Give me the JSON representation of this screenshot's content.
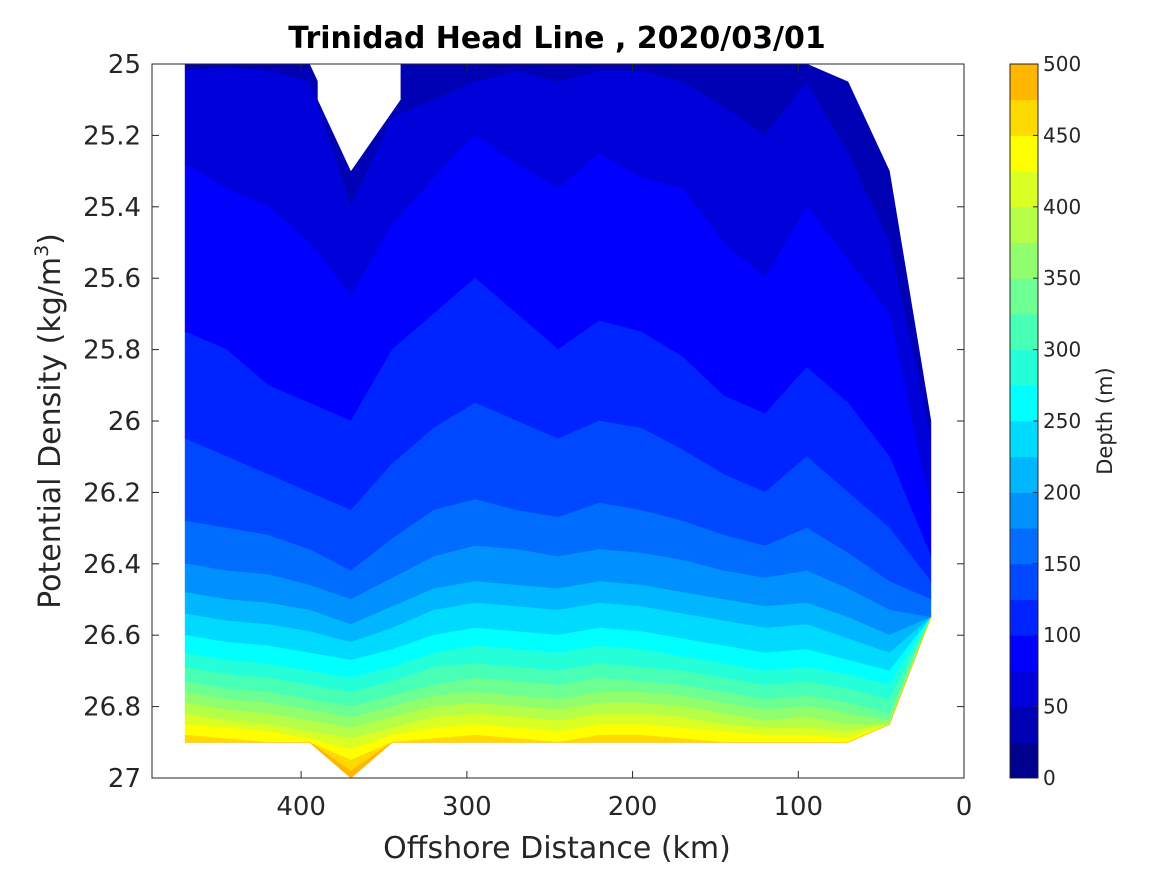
{
  "chart_data": {
    "type": "contourf",
    "title": "Trinidad Head Line , 2020/03/01",
    "xlabel": "Offshore Distance (km)",
    "ylabel": "Potential Density (kg/m",
    "ylabel_superscript": "3",
    "ylabel_suffix": ")",
    "x_reversed": true,
    "y_reversed": true,
    "xlim": [
      490,
      0
    ],
    "ylim": [
      25,
      27
    ],
    "x_ticks": [
      400,
      300,
      200,
      100,
      0
    ],
    "x_tick_labels": [
      "400",
      "300",
      "200",
      "100",
      "0"
    ],
    "y_ticks": [
      25,
      25.2,
      25.4,
      25.6,
      25.8,
      26,
      26.2,
      26.4,
      26.6,
      26.8,
      27
    ],
    "y_tick_labels": [
      "25",
      "25.2",
      "25.4",
      "25.6",
      "25.8",
      "26",
      "26.2",
      "26.4",
      "26.6",
      "26.8",
      "27"
    ],
    "colorbar": {
      "label": "Depth (m)",
      "range": [
        0,
        500
      ],
      "tick_values": [
        0,
        50,
        100,
        150,
        200,
        250,
        300,
        350,
        400,
        450,
        500
      ],
      "tick_labels": [
        "0",
        "50",
        "100",
        "150",
        "200",
        "250",
        "300",
        "350",
        "400",
        "450",
        "500"
      ],
      "colormap": "jet",
      "level_step": 25,
      "colors": [
        "#00008f",
        "#0000b4",
        "#0000da",
        "#0000ff",
        "#0024ff",
        "#0048ff",
        "#006dff",
        "#0091ff",
        "#00b6ff",
        "#00daff",
        "#00ffff",
        "#24ffda",
        "#48ffb6",
        "#6dff91",
        "#91ff6d",
        "#b6ff48",
        "#daff24",
        "#ffff00",
        "#ffda00",
        "#ffb600",
        "#ff9100",
        "#ff6d00",
        "#ff4800",
        "#ff2400",
        "#ff0000",
        "#da0000",
        "#b40000",
        "#8f0000"
      ]
    },
    "x_positions": [
      470,
      445,
      420,
      395,
      370,
      345,
      320,
      295,
      270,
      245,
      220,
      195,
      170,
      145,
      120,
      95,
      70,
      45,
      20
    ],
    "top_boundary": [
      25.0,
      25.0,
      25.0,
      25.0,
      25.25,
      25.0,
      25.0,
      25.0,
      25.0,
      25.0,
      25.0,
      25.0,
      25.0,
      25.0,
      25.0,
      25.0,
      25.05,
      25.3,
      26.0
    ],
    "bottom_boundary": [
      26.9,
      26.9,
      26.9,
      26.9,
      27.0,
      26.9,
      26.9,
      26.9,
      26.9,
      26.9,
      26.9,
      26.9,
      26.9,
      26.9,
      26.9,
      26.9,
      26.9,
      26.85,
      26.55
    ],
    "gaps": [
      {
        "x": [
          390,
          370,
          340
        ],
        "y_top": 25.0,
        "y_bottom": [
          25.1,
          25.3,
          25.1
        ]
      }
    ],
    "contours": [
      {
        "level": 50,
        "y": [
          25.02,
          25.01,
          25.02,
          25.05,
          25.4,
          25.15,
          25.1,
          25.05,
          25.02,
          25.05,
          25.02,
          25.02,
          25.05,
          25.12,
          25.2,
          25.05,
          25.25,
          25.5,
          26.05
        ]
      },
      {
        "level": 75,
        "y": [
          25.28,
          25.35,
          25.4,
          25.5,
          25.65,
          25.45,
          25.32,
          25.2,
          25.28,
          25.35,
          25.25,
          25.32,
          25.35,
          25.5,
          25.6,
          25.4,
          25.55,
          25.7,
          26.25
        ]
      },
      {
        "level": 100,
        "y": [
          25.75,
          25.8,
          25.9,
          25.95,
          26.0,
          25.8,
          25.7,
          25.6,
          25.7,
          25.8,
          25.72,
          25.75,
          25.82,
          25.93,
          25.98,
          25.85,
          25.95,
          26.1,
          26.38
        ]
      },
      {
        "level": 125,
        "y": [
          26.05,
          26.1,
          26.15,
          26.2,
          26.25,
          26.12,
          26.02,
          25.95,
          26.0,
          26.05,
          26.0,
          26.02,
          26.08,
          26.15,
          26.2,
          26.1,
          26.2,
          26.3,
          26.45
        ]
      },
      {
        "level": 150,
        "y": [
          26.28,
          26.3,
          26.32,
          26.36,
          26.42,
          26.33,
          26.25,
          26.22,
          26.25,
          26.27,
          26.23,
          26.25,
          26.28,
          26.32,
          26.35,
          26.3,
          26.37,
          26.45,
          26.5
        ]
      },
      {
        "level": 175,
        "y": [
          26.4,
          26.42,
          26.43,
          26.46,
          26.5,
          26.44,
          26.38,
          26.35,
          26.36,
          26.38,
          26.36,
          26.37,
          26.39,
          26.42,
          26.44,
          26.42,
          26.47,
          26.53,
          26.56
        ]
      },
      {
        "level": 200,
        "y": [
          26.48,
          26.5,
          26.51,
          26.53,
          26.57,
          26.52,
          26.47,
          26.45,
          26.46,
          26.47,
          26.45,
          26.46,
          26.48,
          26.5,
          26.52,
          26.51,
          26.55,
          26.6,
          26.62
        ]
      },
      {
        "level": 225,
        "y": [
          26.54,
          26.56,
          26.57,
          26.59,
          26.62,
          26.58,
          26.53,
          26.51,
          26.52,
          26.53,
          26.51,
          26.52,
          26.54,
          26.56,
          26.58,
          26.57,
          26.61,
          26.65,
          26.68
        ]
      },
      {
        "level": 250,
        "y": [
          26.6,
          26.62,
          26.63,
          26.65,
          26.67,
          26.64,
          26.6,
          26.58,
          26.59,
          26.6,
          26.58,
          26.59,
          26.61,
          26.63,
          26.65,
          26.64,
          26.67,
          26.7,
          26.72
        ]
      },
      {
        "level": 275,
        "y": [
          26.65,
          26.67,
          26.68,
          26.7,
          26.72,
          26.69,
          26.65,
          26.63,
          26.64,
          26.65,
          26.63,
          26.64,
          26.66,
          26.68,
          26.7,
          26.69,
          26.71,
          26.74,
          26.76
        ]
      },
      {
        "level": 300,
        "y": [
          26.69,
          26.71,
          26.72,
          26.74,
          26.76,
          26.73,
          26.69,
          26.68,
          26.69,
          26.7,
          26.68,
          26.69,
          26.7,
          26.72,
          26.74,
          26.73,
          26.75,
          26.78,
          26.8
        ]
      },
      {
        "level": 325,
        "y": [
          26.73,
          26.75,
          26.76,
          26.78,
          26.8,
          26.77,
          26.74,
          26.72,
          26.73,
          26.74,
          26.72,
          26.73,
          26.74,
          26.76,
          26.78,
          26.77,
          26.79,
          26.82,
          26.83
        ]
      },
      {
        "level": 350,
        "y": [
          26.76,
          26.78,
          26.79,
          26.81,
          26.83,
          26.8,
          26.77,
          26.76,
          26.77,
          26.78,
          26.76,
          26.76,
          26.77,
          26.79,
          26.81,
          26.8,
          26.82,
          26.84,
          26.85
        ]
      },
      {
        "level": 375,
        "y": [
          26.79,
          26.81,
          26.82,
          26.84,
          26.86,
          26.83,
          26.8,
          26.79,
          26.8,
          26.81,
          26.79,
          26.79,
          26.8,
          26.82,
          26.84,
          26.83,
          26.85,
          26.86,
          26.87
        ]
      },
      {
        "level": 400,
        "y": [
          26.82,
          26.84,
          26.85,
          26.87,
          26.89,
          26.86,
          26.83,
          26.82,
          26.83,
          26.84,
          26.82,
          26.82,
          26.83,
          26.85,
          26.86,
          26.86,
          26.87,
          26.88,
          26.89
        ]
      },
      {
        "level": 425,
        "y": [
          26.85,
          26.86,
          26.87,
          26.89,
          26.92,
          26.88,
          26.86,
          26.85,
          26.86,
          26.87,
          26.85,
          26.85,
          26.86,
          26.87,
          26.88,
          26.88,
          26.89,
          26.9,
          26.9
        ]
      },
      {
        "level": 450,
        "y": [
          26.88,
          26.89,
          26.9,
          26.9,
          26.95,
          26.9,
          26.89,
          26.88,
          26.89,
          26.9,
          26.88,
          26.88,
          26.89,
          26.9,
          26.9,
          26.9,
          26.9,
          26.9,
          26.9
        ]
      },
      {
        "level": 475,
        "y": [
          26.9,
          26.9,
          26.9,
          26.9,
          26.98,
          26.9,
          26.9,
          26.9,
          26.9,
          26.9,
          26.9,
          26.9,
          26.9,
          26.9,
          26.9,
          26.9,
          26.9,
          26.9,
          26.9
        ]
      }
    ]
  }
}
